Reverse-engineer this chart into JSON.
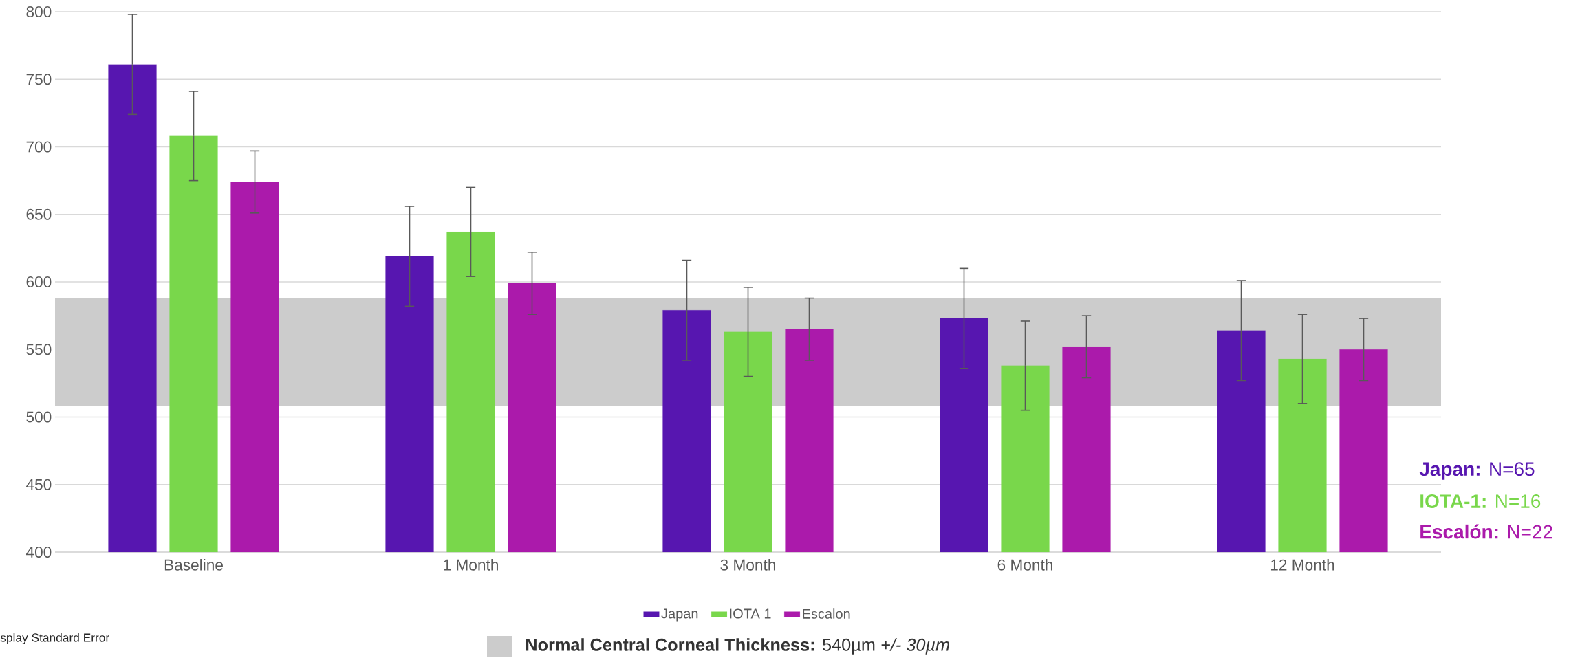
{
  "chart_data": {
    "type": "bar",
    "categories": [
      "Baseline",
      "1 Month",
      "3 Month",
      "6 Month",
      "12 Month"
    ],
    "series": [
      {
        "name": "Japan",
        "color": "#5716b0",
        "values": [
          761,
          619,
          579,
          573,
          564
        ],
        "errors": [
          37,
          37,
          37,
          37,
          37
        ]
      },
      {
        "name": "IOTA 1",
        "color": "#79d74b",
        "values": [
          708,
          637,
          563,
          538,
          543
        ],
        "errors": [
          33,
          33,
          33,
          33,
          33
        ]
      },
      {
        "name": "Escalon",
        "color": "#ab1aab",
        "values": [
          674,
          599,
          565,
          552,
          550
        ],
        "errors": [
          23,
          23,
          23,
          23,
          23
        ]
      }
    ],
    "ylim": [
      400,
      800
    ],
    "yticks": [
      400,
      450,
      500,
      550,
      600,
      650,
      700,
      750,
      800
    ],
    "grid": "y",
    "legend": "bottom",
    "bands": [
      {
        "axis": "y",
        "from": 508,
        "to": 588,
        "color": "#cccccc",
        "label": "**Normal Central Corneal Thickness:** 540µm *+/- 30µm*"
      }
    ],
    "annotations": [
      "**Japan:** N=65",
      "**IOTA-1:** N=16",
      "**Escalón:** N=22",
      "splay Standard Error"
    ]
  }
}
